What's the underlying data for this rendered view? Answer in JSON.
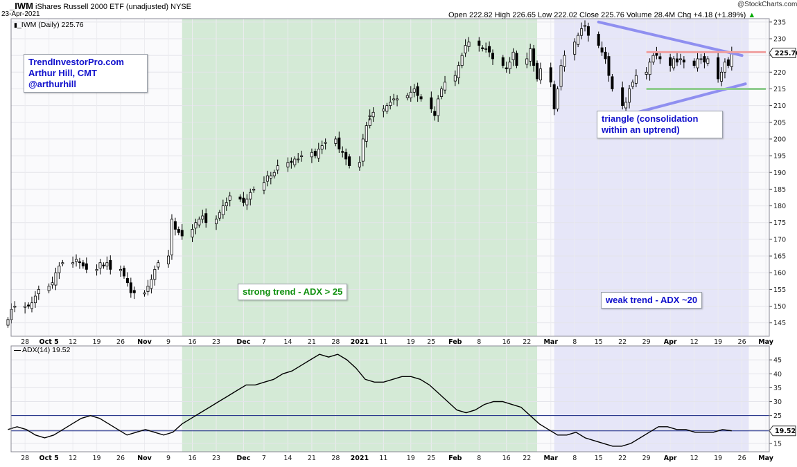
{
  "header": {
    "symbol": "_IWM",
    "name": "iShares Russell 2000 ETF (unadjusted) NYSE",
    "date": "23-Apr-2021",
    "ohlc_text": "Open 222.82  High 226.65  Low 222.02  Close 225.76  Volume 28.4M  Chg +4.18 (+1.89%)",
    "change_arrow": "▲",
    "watermark": "@StockCharts.com"
  },
  "price_panel": {
    "legend": "_IWM (Daily) 225.76",
    "last_price": "225.76"
  },
  "adx_panel": {
    "legend": "ADX(14) 19.52",
    "last_value": "19.52"
  },
  "annotations": {
    "author_line1": "TrendInvestorPro.com",
    "author_line2": "Arthur Hill, CMT",
    "author_line3": "@arthurhill",
    "strong_trend": "strong trend - ADX > 25",
    "weak_trend": "weak trend - ADX ~20",
    "triangle_line1": "triangle (consolidation",
    "triangle_line2": "within an uptrend)"
  },
  "colors": {
    "strong_zone": "#d4ead6",
    "weak_zone": "#e6e6f8",
    "trendline": "#8f8ff0",
    "resistance": "#f0a0a0",
    "support": "#90cc90",
    "adx_line": "#000000",
    "threshold_line": "#102080"
  },
  "chart_data": [
    {
      "type": "candlestick",
      "title": "_IWM (Daily) 225.76",
      "ylim": [
        141,
        236
      ],
      "y_ticks": [
        145,
        150,
        155,
        160,
        165,
        170,
        175,
        180,
        185,
        190,
        195,
        200,
        205,
        210,
        215,
        220,
        225,
        230,
        235
      ],
      "x_ticks": [
        "28",
        "Oct 5",
        "12",
        "19",
        "26",
        "Nov",
        "9",
        "16",
        "23",
        "Dec",
        "7",
        "14",
        "21",
        "28",
        "2021",
        "11",
        "19",
        "25",
        "Feb",
        "8",
        "16",
        "22",
        "Mar",
        "8",
        "15",
        "22",
        "29",
        "Apr",
        "12",
        "19",
        "26",
        "May"
      ],
      "bold_ticks": [
        "Oct 5",
        "Nov",
        "Dec",
        "2021",
        "Feb",
        "Mar",
        "Apr",
        "May"
      ],
      "start_date": "2020-09-23",
      "end_date": "2021-04-23",
      "closes": [
        146,
        149,
        150,
        150,
        150,
        151,
        153,
        155,
        156,
        157,
        160,
        162,
        163,
        163,
        164,
        163,
        162,
        161,
        161,
        163,
        162,
        163,
        161,
        161,
        159,
        157,
        154,
        154,
        154,
        156,
        158,
        161,
        163,
        165,
        176,
        173,
        172,
        171,
        173,
        175,
        176,
        177,
        175,
        176,
        178,
        180,
        181,
        183,
        182,
        181,
        182,
        184,
        185,
        187,
        189,
        189,
        190,
        192,
        193,
        193,
        194,
        194,
        195,
        196,
        195,
        197,
        198,
        199,
        200,
        197,
        196,
        194,
        192,
        193,
        200,
        204,
        206,
        207,
        208,
        209,
        210,
        211,
        212,
        212,
        213,
        214,
        215,
        213,
        212,
        209,
        207,
        212,
        215,
        217,
        219,
        222,
        225,
        228,
        229,
        228,
        227,
        227,
        226,
        224,
        222,
        221,
        223,
        226,
        222,
        224,
        227,
        222,
        218,
        221,
        217,
        209,
        215,
        222,
        225,
        229,
        231,
        233,
        234,
        231,
        228,
        226,
        224,
        219,
        215,
        210,
        211,
        215,
        217,
        219,
        220,
        223,
        225,
        225,
        224,
        222,
        224,
        223,
        224,
        223,
        222,
        224,
        224,
        223,
        224,
        218,
        220,
        223,
        222,
        225.76
      ],
      "annotations": [
        "strong trend - ADX > 25",
        "weak trend - ADX ~20",
        "triangle (consolidation within an uptrend)"
      ]
    },
    {
      "type": "line",
      "title": "ADX(14) 19.52",
      "ylim": [
        12,
        50
      ],
      "y_ticks": [
        15,
        20,
        25,
        30,
        35,
        40,
        45
      ],
      "threshold_lines": [
        25,
        19.52
      ],
      "x_ticks": [
        "28",
        "Oct 5",
        "12",
        "19",
        "26",
        "Nov",
        "9",
        "16",
        "23",
        "Dec",
        "7",
        "14",
        "21",
        "28",
        "2021",
        "11",
        "19",
        "25",
        "Feb",
        "8",
        "16",
        "22",
        "Mar",
        "8",
        "15",
        "22",
        "29",
        "Apr",
        "12",
        "19",
        "26",
        "May"
      ],
      "series": [
        {
          "values": [
            20,
            21,
            20,
            18,
            17,
            18,
            20,
            22,
            24,
            25,
            24,
            22,
            20,
            18,
            19,
            20,
            19,
            18,
            19,
            22,
            24,
            26,
            28,
            30,
            32,
            34,
            36,
            36,
            37,
            38,
            40,
            41,
            43,
            45,
            47,
            46,
            47,
            45,
            42,
            38,
            37,
            37,
            38,
            39,
            39,
            38,
            36,
            33,
            30,
            27,
            26,
            27,
            29,
            30,
            30,
            29,
            28,
            25,
            22,
            20,
            18,
            18,
            19,
            17,
            16,
            15,
            14,
            14,
            15,
            17,
            19,
            21,
            21,
            20,
            20,
            19,
            19,
            19,
            20,
            19.52
          ]
        }
      ]
    }
  ]
}
